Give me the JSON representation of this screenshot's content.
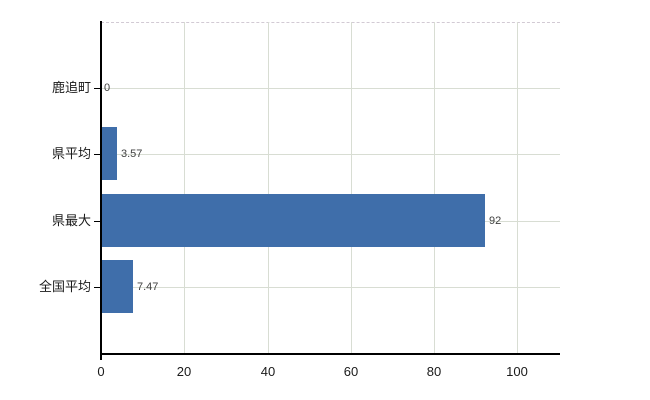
{
  "chart_data": {
    "type": "bar",
    "orientation": "horizontal",
    "title": "",
    "categories": [
      "鹿追町",
      "県平均",
      "県最大",
      "全国平均"
    ],
    "values": [
      0,
      3.57,
      92,
      7.47
    ],
    "value_labels": [
      "0",
      "3.57",
      "92",
      "7.47"
    ],
    "xlim": [
      0,
      110
    ],
    "x_ticks": [
      0,
      20,
      40,
      60,
      80,
      100
    ],
    "grid": true,
    "legend": "none",
    "colors": {
      "bar": "#3f6eaa",
      "gridline": "#d8ddd3",
      "plot_border_dashed": "#d2cad4",
      "axis": "#000000",
      "category_text": "#1a1a1a",
      "tick_text": "#1a1a1a",
      "value_text": "#404040",
      "background": "#ffffff"
    }
  }
}
